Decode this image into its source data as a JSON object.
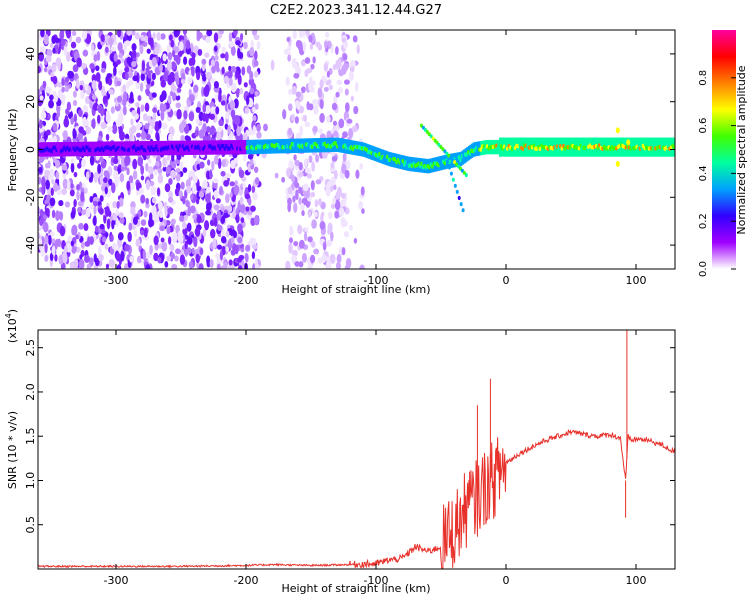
{
  "title": "C2E2.2023.341.12.44.G27",
  "chart_data": [
    {
      "type": "heatmap",
      "title": "C2E2.2023.341.12.44.G27",
      "xlabel": "Height of straight line (km)",
      "ylabel": "Frequency (Hz)",
      "xlim": [
        -360,
        130
      ],
      "ylim": [
        -50,
        50
      ],
      "x_ticks": [
        -300,
        -200,
        -100,
        0,
        100
      ],
      "x_tick_labels": [
        "-300",
        "-200",
        "-100",
        "0",
        "100"
      ],
      "y_ticks": [
        -40,
        -20,
        0,
        20,
        40
      ],
      "y_tick_labels": [
        "-40",
        "-20",
        "0",
        "20",
        "40"
      ],
      "colorbar": {
        "label": "Normalized spectral amplitude",
        "range": [
          0.0,
          1.0
        ],
        "ticks": [
          0.0,
          0.2,
          0.4,
          0.6,
          0.8
        ],
        "tick_labels": [
          "0.0",
          "0.2",
          "0.4",
          "0.6",
          "0.8"
        ],
        "colors": [
          "#ffffff",
          "#a000ff",
          "#3000ff",
          "#00a0ff",
          "#00ffa0",
          "#40ff00",
          "#ffff00",
          "#ff8000",
          "#ff0000",
          "#ff00a0"
        ]
      },
      "ridge": {
        "description_points_x": [
          -360,
          -200,
          -130,
          -110,
          -90,
          -75,
          -60,
          -45,
          -35,
          -25,
          -15,
          0,
          20,
          80,
          90,
          100,
          130
        ],
        "freq_hz": [
          0,
          1,
          2,
          0,
          -4,
          -6,
          -7,
          -5,
          -4,
          0,
          1,
          1,
          1,
          1,
          1,
          1,
          1
        ]
      }
    },
    {
      "type": "line",
      "title": "",
      "xlabel": "Height of straight line (km)",
      "ylabel": "SNR (10 * v/v)",
      "y_multiplier": "(x10",
      "y_multiplier_exp": "4",
      "y_multiplier_close": ")",
      "xlim": [
        -360,
        130
      ],
      "ylim": [
        0,
        2.7
      ],
      "x_ticks": [
        -300,
        -200,
        -100,
        0,
        100
      ],
      "x_tick_labels": [
        "-300",
        "-200",
        "-100",
        "0",
        "100"
      ],
      "y_ticks": [
        0.5,
        1.0,
        1.5,
        2.0,
        2.5
      ],
      "y_tick_labels": [
        "0.5",
        "1.0",
        "1.5",
        "2.0",
        "2.5"
      ],
      "series": [
        {
          "color": "#e8302a",
          "x": [
            -360,
            -300,
            -250,
            -200,
            -180,
            -150,
            -120,
            -100,
            -90,
            -80,
            -75,
            -70,
            -60,
            -50,
            -45,
            -40,
            -35,
            -30,
            -25,
            -20,
            -15,
            -10,
            -5,
            0,
            10,
            20,
            30,
            40,
            50,
            60,
            70,
            80,
            88,
            92,
            94,
            96,
            100,
            110,
            120,
            130
          ],
          "values": [
            0.03,
            0.03,
            0.03,
            0.04,
            0.05,
            0.04,
            0.05,
            0.06,
            0.1,
            0.12,
            0.18,
            0.25,
            0.2,
            0.25,
            0.35,
            0.45,
            0.55,
            0.7,
            0.75,
            0.85,
            0.95,
            1.0,
            1.1,
            1.2,
            1.3,
            1.38,
            1.45,
            1.5,
            1.55,
            1.52,
            1.5,
            1.52,
            1.48,
            1.0,
            1.5,
            1.45,
            1.47,
            1.45,
            1.4,
            1.32
          ]
        }
      ],
      "spikes": [
        {
          "x": -22,
          "y": 1.85
        },
        {
          "x": -12,
          "y": 2.15
        },
        {
          "x": -28,
          "y": 1.1
        },
        {
          "x": 93,
          "y": 2.7
        },
        {
          "x": 92,
          "y": 0.58
        }
      ]
    }
  ]
}
